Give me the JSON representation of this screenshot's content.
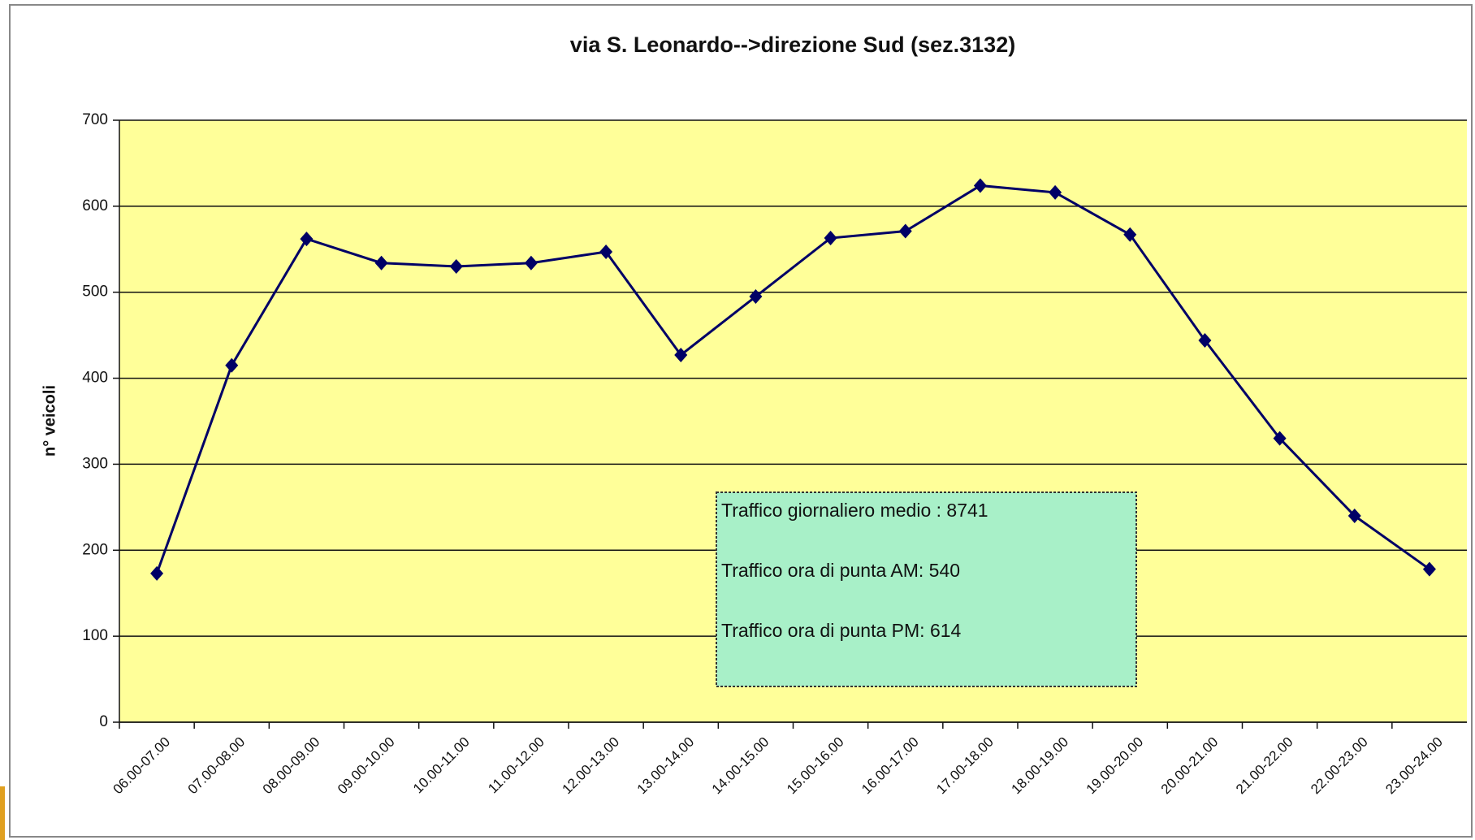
{
  "chart_data": {
    "type": "line",
    "title": "via S. Leonardo-->direzione Sud (sez.3132)",
    "y_label": "n° veicoli",
    "categories": [
      "06.00-07.00",
      "07.00-08.00",
      "08.00-09.00",
      "09.00-10.00",
      "10.00-11.00",
      "11.00-12.00",
      "12.00-13.00",
      "13.00-14.00",
      "14.00-15.00",
      "15.00-16.00",
      "16.00-17.00",
      "17.00-18.00",
      "18.00-19.00",
      "19.00-20.00",
      "20.00-21.00",
      "21.00-22.00",
      "22.00-23.00",
      "23.00-24.00"
    ],
    "values": [
      173,
      415,
      562,
      534,
      530,
      534,
      547,
      427,
      495,
      563,
      571,
      624,
      616,
      567,
      444,
      330,
      240,
      178
    ],
    "color": "#000066",
    "ylim": [
      0,
      700
    ],
    "yticks": [
      0,
      100,
      200,
      300,
      400,
      500,
      600,
      700
    ],
    "grid": true,
    "plot_background": "#ffff99",
    "annotations": [
      "Traffico giornaliero medio : 8741",
      "Traffico ora di punta AM: 540",
      "Traffico ora di punta PM: 614"
    ]
  }
}
